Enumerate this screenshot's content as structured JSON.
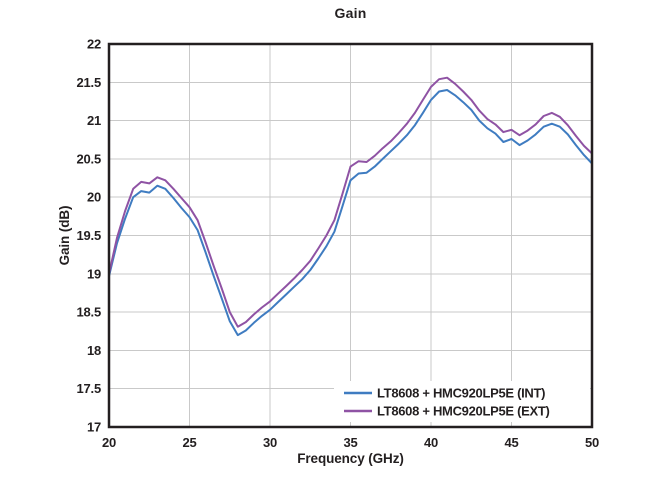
{
  "figure": {
    "background": "#ffffff",
    "text_color": "#231f20",
    "grid_color": "#c9c9c9",
    "axis_color": "#231f20"
  },
  "chart_data": {
    "type": "line",
    "title": "Gain",
    "xlabel": "Frequency (GHz)",
    "ylabel": "Gain (dB)",
    "xlim": [
      20,
      50
    ],
    "ylim": [
      17,
      22
    ],
    "x_ticks": [
      20,
      25,
      30,
      35,
      40,
      45,
      50
    ],
    "y_ticks": [
      17,
      17.5,
      18,
      18.5,
      19,
      19.5,
      20,
      20.5,
      21,
      21.5,
      22
    ],
    "grid": true,
    "legend_position": "lower right",
    "x": [
      20.0,
      20.5,
      21.0,
      21.5,
      22.0,
      22.5,
      23.0,
      23.5,
      24.0,
      24.5,
      25.0,
      25.5,
      26.0,
      26.5,
      27.0,
      27.5,
      28.0,
      28.5,
      29.0,
      29.5,
      30.0,
      30.5,
      31.0,
      31.5,
      32.0,
      32.5,
      33.0,
      33.5,
      34.0,
      34.5,
      35.0,
      35.5,
      36.0,
      36.5,
      37.0,
      37.5,
      38.0,
      38.5,
      39.0,
      39.5,
      40.0,
      40.5,
      41.0,
      41.5,
      42.0,
      42.5,
      43.0,
      43.5,
      44.0,
      44.5,
      45.0,
      45.5,
      46.0,
      46.5,
      47.0,
      47.5,
      48.0,
      48.5,
      49.0,
      49.5,
      50.0
    ],
    "series": [
      {
        "name": "LT8608 + HMC920LP5E (INT)",
        "color": "#3f7cc1",
        "values": [
          18.97,
          19.4,
          19.72,
          20.0,
          20.08,
          20.06,
          20.15,
          20.11,
          19.99,
          19.86,
          19.74,
          19.57,
          19.28,
          18.97,
          18.68,
          18.38,
          18.2,
          18.26,
          18.36,
          18.45,
          18.53,
          18.63,
          18.73,
          18.83,
          18.93,
          19.05,
          19.2,
          19.36,
          19.55,
          19.88,
          20.22,
          20.31,
          20.32,
          20.4,
          20.5,
          20.6,
          20.7,
          20.81,
          20.94,
          21.1,
          21.27,
          21.38,
          21.4,
          21.33,
          21.24,
          21.14,
          21.0,
          20.9,
          20.83,
          20.72,
          20.76,
          20.68,
          20.74,
          20.82,
          20.92,
          20.96,
          20.92,
          20.82,
          20.68,
          20.55,
          20.44
        ]
      },
      {
        "name": "LT8608 + HMC920LP5E (EXT)",
        "color": "#8f53a4",
        "values": [
          19.0,
          19.47,
          19.82,
          20.11,
          20.2,
          20.18,
          20.26,
          20.22,
          20.11,
          19.99,
          19.87,
          19.7,
          19.41,
          19.1,
          18.81,
          18.5,
          18.31,
          18.37,
          18.47,
          18.56,
          18.64,
          18.74,
          18.84,
          18.94,
          19.05,
          19.17,
          19.33,
          19.5,
          19.7,
          20.04,
          20.4,
          20.47,
          20.46,
          20.54,
          20.64,
          20.73,
          20.84,
          20.96,
          21.1,
          21.27,
          21.44,
          21.54,
          21.56,
          21.48,
          21.38,
          21.27,
          21.13,
          21.02,
          20.95,
          20.85,
          20.88,
          20.81,
          20.87,
          20.95,
          21.06,
          21.1,
          21.05,
          20.94,
          20.8,
          20.67,
          20.57
        ]
      }
    ]
  }
}
